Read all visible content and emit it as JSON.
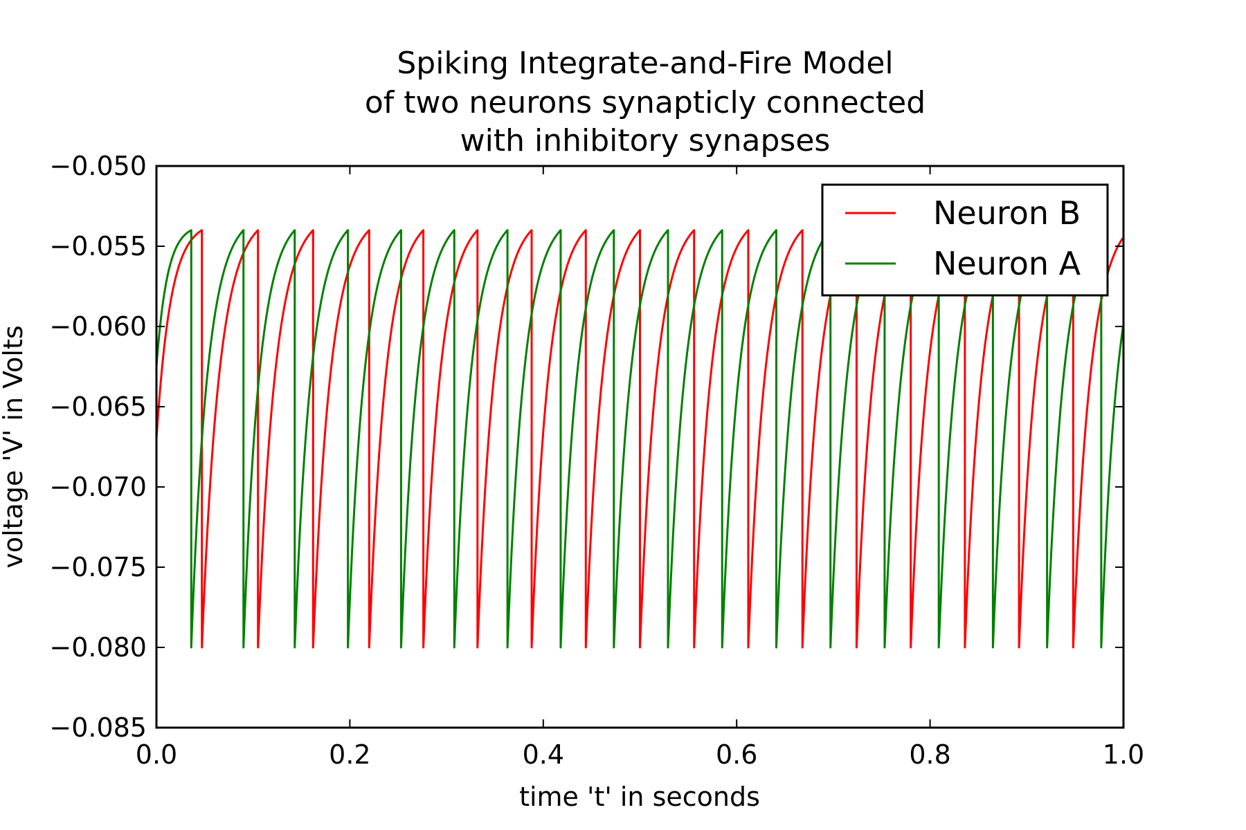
{
  "chart_data": {
    "type": "line",
    "title_lines": [
      "Spiking Integrate-and-Fire Model",
      "of two neurons synapticly connected",
      "with inhibitory synapses"
    ],
    "xlabel": "time 't' in seconds",
    "ylabel": "voltage 'V' in Volts",
    "xlim": [
      0.0,
      1.0
    ],
    "ylim": [
      -0.085,
      -0.05
    ],
    "x_ticks": [
      0.0,
      0.2,
      0.4,
      0.6,
      0.8,
      1.0
    ],
    "x_tick_labels": [
      "0.0",
      "0.2",
      "0.4",
      "0.6",
      "0.8",
      "1.0"
    ],
    "y_ticks": [
      -0.05,
      -0.055,
      -0.06,
      -0.065,
      -0.07,
      -0.075,
      -0.08,
      -0.085
    ],
    "y_tick_labels": [
      "−0.050",
      "−0.055",
      "−0.060",
      "−0.065",
      "−0.070",
      "−0.075",
      "−0.080",
      "−0.085"
    ],
    "grid": false,
    "legend_position": "top-right",
    "threshold": -0.054,
    "reset": -0.08,
    "series": [
      {
        "name": "Neuron B",
        "color": "#ff0000",
        "start_value": -0.067,
        "spike_times": [
          0.047,
          0.105,
          0.162,
          0.22,
          0.276,
          0.332,
          0.388,
          0.444,
          0.5,
          0.556,
          0.612,
          0.668,
          0.724,
          0.78,
          0.836,
          0.892,
          0.948
        ],
        "end_value": -0.0545
      },
      {
        "name": "Neuron A",
        "color": "#008000",
        "start_value": -0.0625,
        "spike_times": [
          0.036,
          0.09,
          0.143,
          0.198,
          0.253,
          0.308,
          0.363,
          0.418,
          0.473,
          0.529,
          0.585,
          0.641,
          0.697,
          0.753,
          0.809,
          0.865,
          0.921,
          0.977
        ],
        "end_value": -0.0605
      }
    ]
  }
}
